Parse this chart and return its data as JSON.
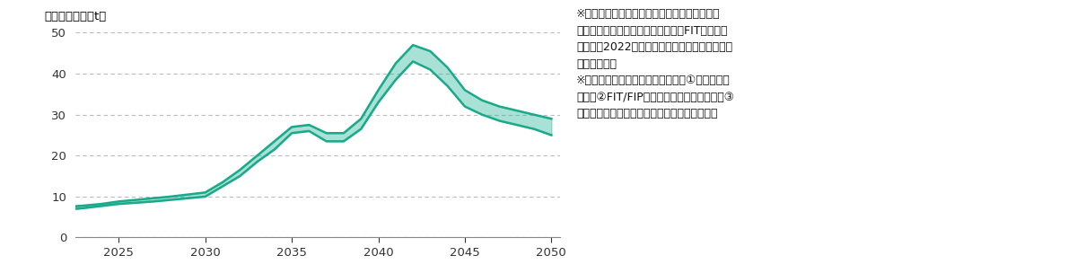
{
  "ylabel": "排出見込量（万t）",
  "xlim": [
    2022.5,
    2050.5
  ],
  "ylim": [
    0,
    50
  ],
  "yticks": [
    0,
    10,
    20,
    30,
    40,
    50
  ],
  "xticks": [
    2025,
    2030,
    2035,
    2040,
    2045,
    2050
  ],
  "fill_color": "#2ab49a",
  "fill_alpha": 0.4,
  "line_color": "#1aaa8a",
  "line_width": 1.8,
  "annotation_lines": [
    "※太陽光発電の導入量は、第６次エネルギー基",
    "本計画の導入目標をもとに推計。非FIT設備の導",
    "入割合は2022年の推計量をもとに一定の仮定を",
    "置いて推計。",
    "※太陽電池モジュールの排出量は、①故障による",
    "排出、②FIT/FIP買取期間満了に伴う排出、③",
    "損益分岐要因による排出要因を考慮して推計。"
  ],
  "years": [
    2022,
    2023,
    2024,
    2025,
    2026,
    2027,
    2028,
    2029,
    2030,
    2031,
    2032,
    2033,
    2034,
    2035,
    2036,
    2037,
    2038,
    2039,
    2040,
    2041,
    2042,
    2043,
    2044,
    2045,
    2046,
    2047,
    2048,
    2049,
    2050
  ],
  "values_upper": [
    7.5,
    7.8,
    8.2,
    8.8,
    9.2,
    9.6,
    10.0,
    10.5,
    11.0,
    13.5,
    16.5,
    20.0,
    23.5,
    27.0,
    27.5,
    25.5,
    25.5,
    29.0,
    36.0,
    42.5,
    47.0,
    45.5,
    41.5,
    36.0,
    33.5,
    32.0,
    31.0,
    30.0,
    29.0
  ],
  "values_lower": [
    6.8,
    7.2,
    7.7,
    8.2,
    8.5,
    8.8,
    9.2,
    9.6,
    10.0,
    12.5,
    15.0,
    18.5,
    21.5,
    25.5,
    26.0,
    23.5,
    23.5,
    26.5,
    33.0,
    38.5,
    43.0,
    41.0,
    37.0,
    32.0,
    30.0,
    28.5,
    27.5,
    26.5,
    25.0
  ],
  "background_color": "#ffffff",
  "grid_color": "#bbbbbb",
  "figsize": [
    12.0,
    3.04
  ],
  "dpi": 100
}
